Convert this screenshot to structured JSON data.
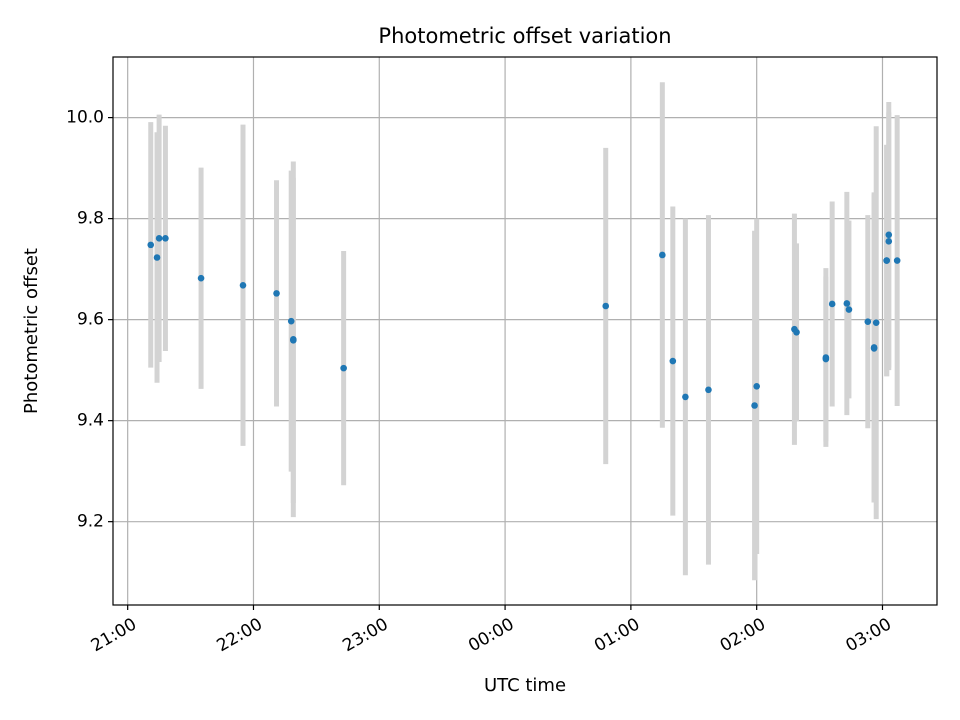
{
  "chart_data": {
    "type": "scatter",
    "title": "Photometric offset variation",
    "xlabel": "UTC time",
    "ylabel": "Photometric offset",
    "grid": true,
    "x_tick_labels": [
      "21:00",
      "22:00",
      "23:00",
      "00:00",
      "01:00",
      "02:00",
      "03:00"
    ],
    "y_tick_labels": [
      "9.2",
      "9.4",
      "9.6",
      "9.8",
      "10.0"
    ],
    "xlim": [
      "20:53",
      "03:26"
    ],
    "ylim": [
      9.035,
      10.12
    ],
    "point_color": "#1f77b4",
    "errorbar_color": "#d3d3d3",
    "points": [
      {
        "t": "21:11",
        "y": 9.748,
        "err": 0.243
      },
      {
        "t": "21:14",
        "y": 9.723,
        "err": 0.248
      },
      {
        "t": "21:15",
        "y": 9.761,
        "err": 0.245
      },
      {
        "t": "21:18",
        "y": 9.761,
        "err": 0.223
      },
      {
        "t": "21:35",
        "y": 9.682,
        "err": 0.219
      },
      {
        "t": "21:55",
        "y": 9.668,
        "err": 0.318
      },
      {
        "t": "22:11",
        "y": 9.652,
        "err": 0.224
      },
      {
        "t": "22:18",
        "y": 9.597,
        "err": 0.298
      },
      {
        "t": "22:19",
        "y": 9.561,
        "err": 0.352
      },
      {
        "t": "22:19",
        "y": 9.559,
        "err": 0.322
      },
      {
        "t": "22:43",
        "y": 9.504,
        "err": 0.232
      },
      {
        "t": "00:48",
        "y": 9.627,
        "err": 0.313
      },
      {
        "t": "01:15",
        "y": 9.728,
        "err": 0.342
      },
      {
        "t": "01:20",
        "y": 9.518,
        "err": 0.306
      },
      {
        "t": "01:26",
        "y": 9.447,
        "err": 0.353
      },
      {
        "t": "01:37",
        "y": 9.461,
        "err": 0.346
      },
      {
        "t": "01:59",
        "y": 9.43,
        "err": 0.346
      },
      {
        "t": "02:00",
        "y": 9.468,
        "err": 0.332
      },
      {
        "t": "02:18",
        "y": 9.581,
        "err": 0.229
      },
      {
        "t": "02:19",
        "y": 9.575,
        "err": 0.176
      },
      {
        "t": "02:33",
        "y": 9.525,
        "err": 0.177
      },
      {
        "t": "02:33",
        "y": 9.522,
        "err": 0.163
      },
      {
        "t": "02:36",
        "y": 9.631,
        "err": 0.203
      },
      {
        "t": "02:43",
        "y": 9.632,
        "err": 0.221
      },
      {
        "t": "02:44",
        "y": 9.62,
        "err": 0.176
      },
      {
        "t": "02:53",
        "y": 9.596,
        "err": 0.211
      },
      {
        "t": "02:56",
        "y": 9.545,
        "err": 0.307
      },
      {
        "t": "02:56",
        "y": 9.543,
        "err": 0.305
      },
      {
        "t": "02:57",
        "y": 9.594,
        "err": 0.389
      },
      {
        "t": "03:02",
        "y": 9.717,
        "err": 0.229
      },
      {
        "t": "03:02",
        "y": 9.717,
        "err": 0.229
      },
      {
        "t": "03:03",
        "y": 9.768,
        "err": 0.263
      },
      {
        "t": "03:03",
        "y": 9.755,
        "err": 0.255
      },
      {
        "t": "03:07",
        "y": 9.717,
        "err": 0.288
      }
    ]
  }
}
